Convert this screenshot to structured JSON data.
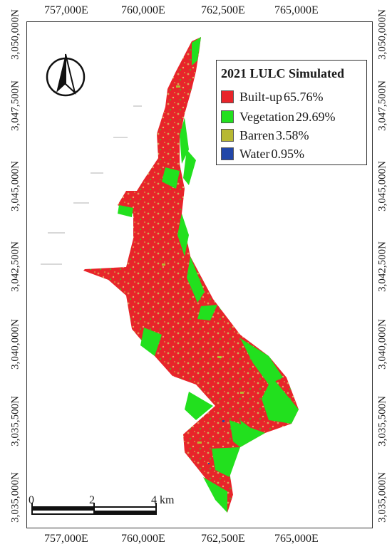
{
  "map": {
    "x_ticks": [
      "757,000E",
      "760,000E",
      "762,500E",
      "765,000E"
    ],
    "y_ticks": [
      "3,050,000N",
      "3,047,500N",
      "3,045,000N",
      "3,042,500N",
      "3,040,000N",
      "3,035,500N",
      "3,035,000N"
    ],
    "legend": {
      "title": "2021 LULC Simulated",
      "items": [
        {
          "label": "Built-up",
          "value": "65.76%",
          "color": "#e8242a"
        },
        {
          "label": "Vegetation",
          "value": "29.69%",
          "color": "#22e01e"
        },
        {
          "label": "Barren",
          "value": "3.58%",
          "color": "#b7b832"
        },
        {
          "label": "Water",
          "value": "0.95%",
          "color": "#2146a8"
        }
      ]
    },
    "scale": {
      "labels": [
        "0",
        "2",
        "4 km"
      ]
    },
    "north_arrow": "north-arrow-icon"
  }
}
